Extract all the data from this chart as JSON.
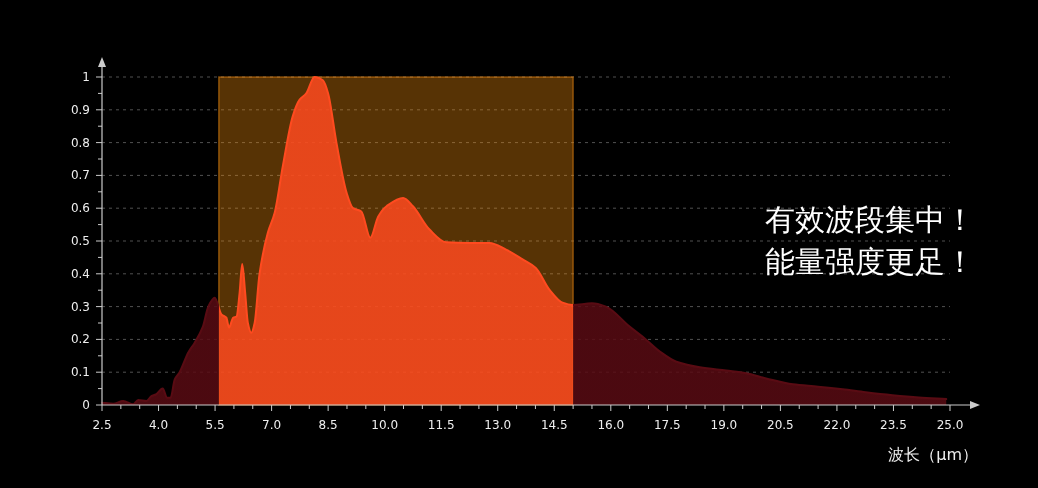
{
  "chart_data": {
    "type": "area",
    "xlabel": "波长（μm）",
    "annotations": [
      "有效波段集中！",
      "能量强度更足！"
    ],
    "xlim": [
      2.5,
      25
    ],
    "ylim": [
      0,
      1
    ],
    "grid": "y",
    "bands": [
      {
        "axis": "x",
        "from": 5.6,
        "to": 15.0,
        "color": "#f28c0f"
      }
    ],
    "xticks": [
      2.5,
      {
        "value": 3,
        "label": null
      },
      {
        "value": 3.5,
        "label": null
      },
      {
        "value": 4,
        "label": "4.0"
      },
      {
        "value": 4.5,
        "label": null
      },
      {
        "value": 5,
        "label": null
      },
      5.5,
      {
        "value": 6,
        "label": null
      },
      {
        "value": 6.5,
        "label": null
      },
      {
        "value": 7,
        "label": "7.0"
      },
      {
        "value": 7.5,
        "label": null
      },
      {
        "value": 8,
        "label": null
      },
      8.5,
      {
        "value": 9,
        "label": null
      },
      {
        "value": 9.5,
        "label": null
      },
      {
        "value": 10,
        "label": "10.0"
      },
      {
        "value": 10.5,
        "label": null
      },
      {
        "value": 11,
        "label": null
      },
      11.5,
      {
        "value": 12,
        "label": null
      },
      {
        "value": 12.5,
        "label": null
      },
      {
        "value": 13,
        "label": "13.0"
      },
      {
        "value": 13.5,
        "label": null
      },
      {
        "value": 14,
        "label": null
      },
      14.5,
      {
        "value": 15,
        "label": null
      },
      {
        "value": 15.5,
        "label": null
      },
      {
        "value": 16,
        "label": "16.0"
      },
      {
        "value": 16.5,
        "label": null
      },
      {
        "value": 17,
        "label": null
      },
      17.5,
      {
        "value": 18,
        "label": null
      },
      {
        "value": 18.5,
        "label": null
      },
      {
        "value": 19,
        "label": "19.0"
      },
      {
        "value": 19.5,
        "label": null
      },
      {
        "value": 20,
        "label": null
      },
      20.5,
      {
        "value": 21,
        "label": null
      },
      {
        "value": 21.5,
        "label": null
      },
      {
        "value": 22,
        "label": "22.0"
      },
      {
        "value": 22.5,
        "label": null
      },
      {
        "value": 23,
        "label": null
      },
      23.5,
      {
        "value": 24,
        "label": null
      },
      {
        "value": 24.5,
        "label": null
      },
      {
        "value": 25,
        "label": "25.0"
      }
    ],
    "yticks": [
      0,
      {
        "value": 0.05,
        "label": null
      },
      0.1,
      {
        "value": 0.15,
        "label": null
      },
      0.2,
      {
        "value": 0.25,
        "label": null
      },
      0.3,
      {
        "value": 0.35,
        "label": null
      },
      0.4,
      {
        "value": 0.45,
        "label": null
      },
      0.5,
      {
        "value": 0.55,
        "label": null
      },
      0.6,
      {
        "value": 0.65,
        "label": null
      },
      0.7,
      {
        "value": 0.75,
        "label": null
      },
      0.8,
      {
        "value": 0.85,
        "label": null
      },
      0.9,
      {
        "value": 0.95,
        "label": null
      },
      1
    ],
    "series": [
      {
        "color": "#ff4a1f",
        "x": [
          2.5,
          2.8,
          3.06,
          3.33,
          3.46,
          3.68,
          3.81,
          3.93,
          4.11,
          4.23,
          4.32,
          4.43,
          4.56,
          4.79,
          4.96,
          5.18,
          5.32,
          5.49,
          5.67,
          5.8,
          5.87,
          5.98,
          6.07,
          6.15,
          6.22,
          6.3,
          6.37,
          6.46,
          6.55,
          6.68,
          6.9,
          7.08,
          7.3,
          7.56,
          7.74,
          7.92,
          8.14,
          8.36,
          8.5,
          8.72,
          8.99,
          9.16,
          9.38,
          9.62,
          9.83,
          10.05,
          10.49,
          10.75,
          11.19,
          11.63,
          12.25,
          12.78,
          13.22,
          13.66,
          14.01,
          14.37,
          14.72,
          14.99,
          15.5,
          15.87,
          16.49,
          16.93,
          17.3,
          17.74,
          18.36,
          19.06,
          19.59,
          20.12,
          20.83,
          21.5,
          22.15,
          22.76,
          23.47,
          24.17,
          24.9
        ],
        "values": [
          0.007,
          0.004,
          0.012,
          0.002,
          0.015,
          0.012,
          0.027,
          0.032,
          0.05,
          0.022,
          0.022,
          0.078,
          0.1,
          0.16,
          0.19,
          0.24,
          0.3,
          0.327,
          0.276,
          0.266,
          0.236,
          0.266,
          0.27,
          0.34,
          0.43,
          0.34,
          0.25,
          0.22,
          0.25,
          0.4,
          0.525,
          0.585,
          0.73,
          0.88,
          0.93,
          0.95,
          1.0,
          0.99,
          0.95,
          0.8,
          0.647,
          0.6,
          0.59,
          0.51,
          0.575,
          0.606,
          0.631,
          0.606,
          0.535,
          0.496,
          0.494,
          0.494,
          0.474,
          0.444,
          0.418,
          0.352,
          0.312,
          0.305,
          0.31,
          0.3,
          0.24,
          0.2,
          0.163,
          0.132,
          0.115,
          0.105,
          0.097,
          0.081,
          0.063,
          0.056,
          0.048,
          0.039,
          0.03,
          0.023,
          0.018
        ]
      }
    ]
  }
}
